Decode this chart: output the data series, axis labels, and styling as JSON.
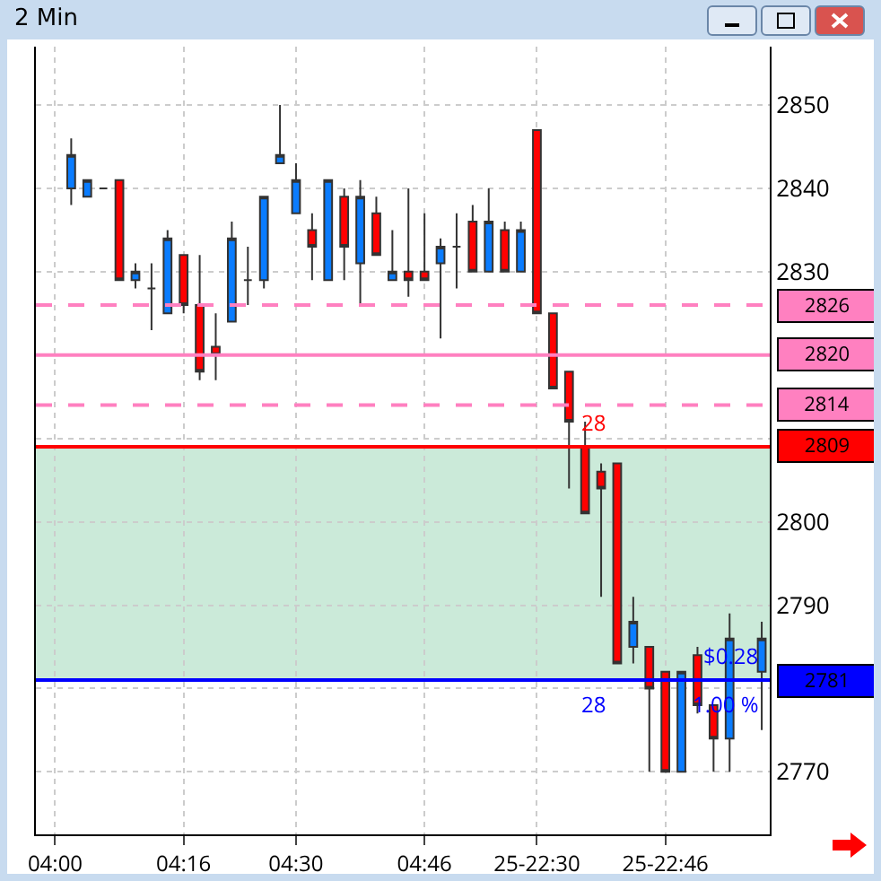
{
  "chart_data": {
    "type": "candlestick",
    "title": "2 Min",
    "categories": [
      "04:00",
      null,
      null,
      null,
      null,
      null,
      null,
      null,
      "04:16",
      null,
      null,
      null,
      null,
      null,
      null,
      "04:30",
      null,
      null,
      null,
      null,
      null,
      null,
      null,
      "04:46",
      null,
      null,
      null,
      null,
      null,
      null,
      "25-22:30",
      null,
      null,
      null,
      null,
      null,
      null,
      null,
      "25-22:46",
      null,
      null,
      null,
      null,
      null,
      null
    ],
    "ohlc": [
      null,
      [
        2840,
        2846,
        2838,
        2844
      ],
      [
        2839,
        2841,
        2839,
        2841
      ],
      [
        2840,
        2840,
        2840,
        2840
      ],
      [
        2841,
        2841,
        2829,
        2829
      ],
      [
        2829,
        2831,
        2828,
        2830
      ],
      [
        2828,
        2831,
        2823,
        2828
      ],
      [
        2825,
        2835,
        2825,
        2834
      ],
      [
        2832,
        2832,
        2825,
        2826
      ],
      [
        2826,
        2832,
        2817,
        2818
      ],
      [
        2821,
        2825,
        2817,
        2820
      ],
      [
        2824,
        2836,
        2824,
        2834
      ],
      [
        2829,
        2833,
        2826,
        2829
      ],
      [
        2829,
        2839,
        2828,
        2839
      ],
      [
        2843,
        2850,
        2843,
        2844
      ],
      [
        2837,
        2843,
        2837,
        2841
      ],
      [
        2835,
        2837,
        2829,
        2833
      ],
      [
        2829,
        2841,
        2829,
        2841
      ],
      [
        2839,
        2840,
        2829,
        2833
      ],
      [
        2831,
        2841,
        2826,
        2839
      ],
      [
        2837,
        2839,
        2832,
        2832
      ],
      [
        2829,
        2835,
        2829,
        2830
      ],
      [
        2830,
        2840,
        2827,
        2829
      ],
      [
        2830,
        2837,
        2829,
        2829
      ],
      [
        2831,
        2834,
        2822,
        2833
      ],
      [
        2833,
        2837,
        2828,
        2833
      ],
      [
        2836,
        2838,
        2830,
        2830
      ],
      [
        2830,
        2840,
        2830,
        2836
      ],
      [
        2835,
        2836,
        2830,
        2830
      ],
      [
        2830,
        2836,
        2830,
        2835
      ],
      [
        2847,
        2847,
        2825,
        2825
      ],
      [
        2825,
        2825,
        2816,
        2816
      ],
      [
        2818,
        2818,
        2804,
        2812
      ],
      [
        2809,
        2812,
        2801,
        2801
      ],
      [
        2806,
        2807,
        2791,
        2804
      ],
      [
        2807,
        2807,
        2783,
        2783
      ],
      [
        2785,
        2791,
        2783,
        2788
      ],
      [
        2785,
        2785,
        2770,
        2780
      ],
      [
        2782,
        2782,
        2770,
        2770
      ],
      [
        2770,
        2782,
        2770,
        2782
      ],
      [
        2784,
        2785,
        2777,
        2778
      ],
      [
        2778,
        2778,
        2770,
        2774
      ],
      [
        2774,
        2789,
        2770,
        2786
      ],
      null,
      [
        2782,
        2788,
        2775,
        2786
      ]
    ],
    "ylim": [
      2762.5,
      2857
    ],
    "yticks": [
      2850,
      2840,
      2830,
      {
        "value": 2820,
        "label": null
      },
      {
        "value": 2810,
        "label": null
      },
      2800,
      2790,
      {
        "value": 2780,
        "label": null
      },
      2770
    ],
    "grid": true,
    "ref_lines": [
      {
        "axis": "y",
        "value": 2826,
        "label": "2826",
        "color": "#ff80c0",
        "line_style": "dashed"
      },
      {
        "axis": "y",
        "value": 2820,
        "label": "2820",
        "color": "#ff80c0",
        "line_style": "solid"
      },
      {
        "axis": "y",
        "value": 2814,
        "label": "2814",
        "color": "#ff80c0",
        "line_style": "dashed"
      },
      {
        "axis": "y",
        "value": 2809,
        "label": "2809",
        "color": "#ff0000",
        "line_style": "solid"
      },
      {
        "axis": "y",
        "value": 2781,
        "label": "2781",
        "color": "#0000ff",
        "line_style": "solid"
      }
    ],
    "bands": [
      {
        "axis": "y",
        "from": 2781,
        "to": 2809,
        "color": "#a8dcc0"
      }
    ],
    "annotations": [
      {
        "text": "28",
        "y": 2809
      },
      {
        "text": "$0.28",
        "y": 2781
      },
      {
        "text": "1.00 %",
        "y": 2781
      },
      {
        "text": "28",
        "y": 2781
      }
    ]
  }
}
